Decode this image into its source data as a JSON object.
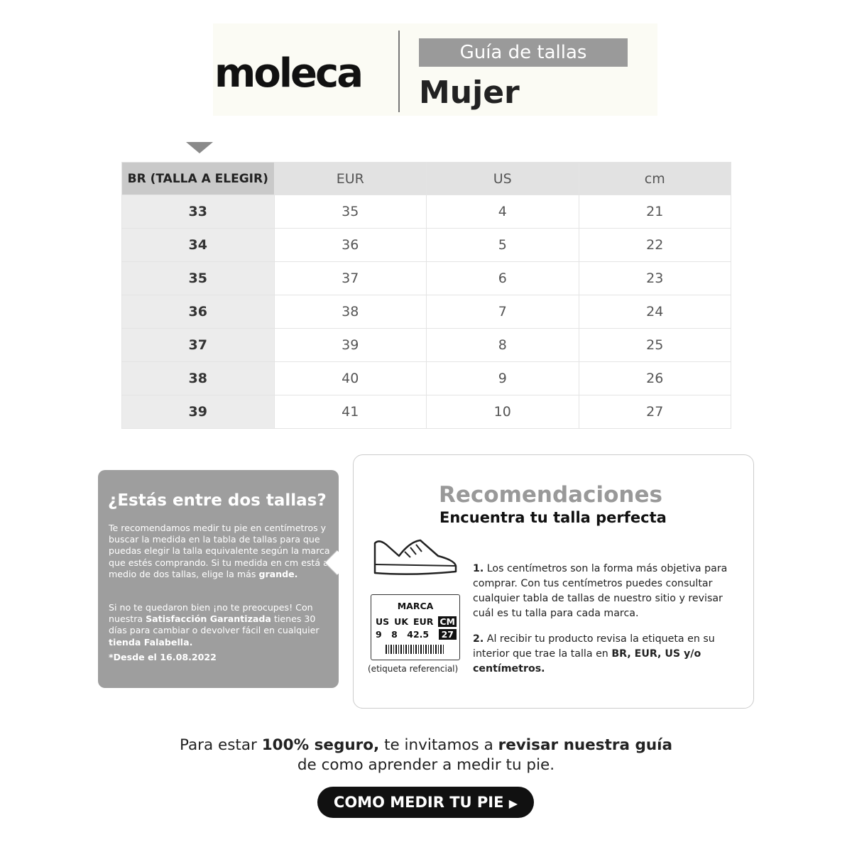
{
  "header": {
    "brand": "moleca",
    "badge": "Guía de tallas",
    "title": "Mujer"
  },
  "table": {
    "columns": [
      "BR (TALLA A ELEGIR)",
      "EUR",
      "US",
      "cm"
    ],
    "rows": [
      [
        33,
        35,
        4,
        21
      ],
      [
        34,
        36,
        5,
        22
      ],
      [
        35,
        37,
        6,
        23
      ],
      [
        36,
        38,
        7,
        24
      ],
      [
        37,
        39,
        8,
        25
      ],
      [
        38,
        40,
        9,
        26
      ],
      [
        39,
        41,
        10,
        27
      ]
    ]
  },
  "callout": {
    "title": "¿Estás entre dos tallas?",
    "paragraphs": [
      [
        {
          "text": "Te recomendamos medir tu pie en centímetros y buscar la medida en la tabla de tallas para que puedas elegir la talla equivalente según la marca que estés comprando. Si tu medida en cm está al medio de dos tallas, elige la más "
        },
        {
          "text": "grande.",
          "bold": true
        }
      ],
      [
        {
          "text": "Si no te quedaron bien ¡no te preocupes! Con nuestra "
        },
        {
          "text": "Satisfacción Garantizada",
          "bold": true
        },
        {
          "text": " tienes 30 días para cambiar o devolver fácil en cualquier "
        },
        {
          "text": "tienda Falabella.",
          "bold": true
        }
      ]
    ],
    "note": "*Desde el 16.08.2022"
  },
  "recommendations": {
    "title": "Recomendaciones",
    "subtitle": "Encuentra tu talla perfecta",
    "label": {
      "brand": "MARCA",
      "columns": [
        "US",
        "UK",
        "EUR",
        "CM"
      ],
      "values": [
        "9",
        "8",
        "42.5",
        "27"
      ],
      "caption": "(etiqueta referencial)"
    },
    "steps": [
      [
        {
          "text": "1.",
          "bold": true
        },
        {
          "text": " Los centímetros son la forma más objetiva para comprar. Con tus centímetros puedes consultar cualquier tabla de tallas de nuestro sitio y revisar cuál es tu talla para cada marca."
        }
      ],
      [
        {
          "text": "2.",
          "bold": true
        },
        {
          "text": " Al recibir tu producto revisa la etiqueta en su interior que trae la talla en "
        },
        {
          "text": "BR, EUR, US y/o centímetros.",
          "bold": true
        }
      ]
    ]
  },
  "footer": {
    "lines": [
      [
        {
          "text": "Para estar "
        },
        {
          "text": "100% seguro,",
          "bold": true
        },
        {
          "text": " te invitamos a "
        },
        {
          "text": "revisar nuestra guía",
          "bold": true
        }
      ],
      [
        {
          "text": "de como aprender a medir tu pie."
        }
      ]
    ],
    "button": "COMO MEDIR TU PIE"
  }
}
